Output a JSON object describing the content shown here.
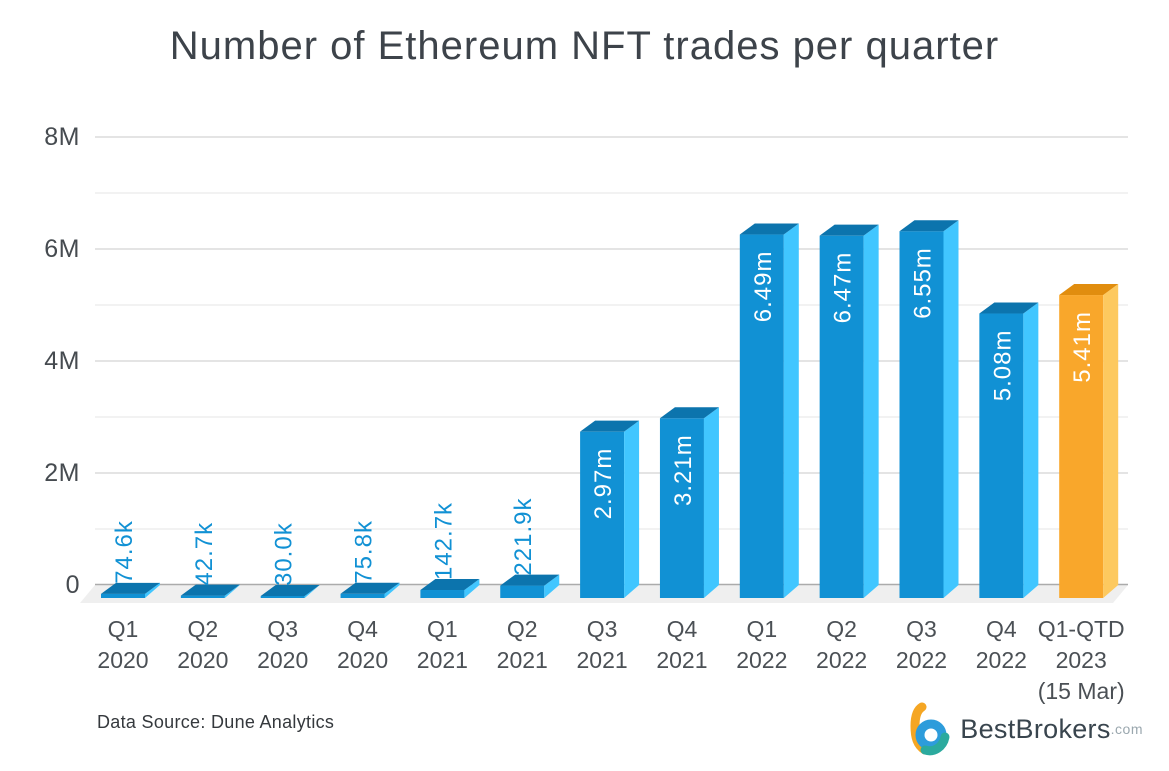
{
  "title": "Number of Ethereum NFT trades per quarter",
  "chart_data": {
    "type": "bar",
    "title": "Number of Ethereum NFT trades per quarter",
    "xlabel": "",
    "ylabel": "",
    "ylim": [
      0,
      8000000
    ],
    "grid": "horizontal, major every 2M (darker) and minor every 1M (lighter)",
    "legend": "none",
    "y_ticks": [
      {
        "label": "8M",
        "value_millions": 8
      },
      {
        "label": "6M",
        "value_millions": 6
      },
      {
        "label": "4M",
        "value_millions": 4
      },
      {
        "label": "2M",
        "value_millions": 2
      },
      {
        "label": "0",
        "value_millions": 0
      }
    ],
    "categories": [
      [
        "Q1",
        "2020"
      ],
      [
        "Q2",
        "2020"
      ],
      [
        "Q3",
        "2020"
      ],
      [
        "Q4",
        "2020"
      ],
      [
        "Q1",
        "2021"
      ],
      [
        "Q2",
        "2021"
      ],
      [
        "Q3",
        "2021"
      ],
      [
        "Q4",
        "2021"
      ],
      [
        "Q1",
        "2022"
      ],
      [
        "Q2",
        "2022"
      ],
      [
        "Q3",
        "2022"
      ],
      [
        "Q4",
        "2022"
      ],
      [
        "Q1-QTD",
        "2023",
        "(15 Mar)"
      ]
    ],
    "bars": [
      {
        "category": "Q1 2020",
        "label": "74.6k",
        "value_millions": 0.0746,
        "color": "blue",
        "label_position": "outside"
      },
      {
        "category": "Q2 2020",
        "label": "42.7k",
        "value_millions": 0.0427,
        "color": "blue",
        "label_position": "outside"
      },
      {
        "category": "Q3 2020",
        "label": "30.0k",
        "value_millions": 0.03,
        "color": "blue",
        "label_position": "outside"
      },
      {
        "category": "Q4 2020",
        "label": "75.8k",
        "value_millions": 0.0758,
        "color": "blue",
        "label_position": "outside"
      },
      {
        "category": "Q1 2021",
        "label": "142.7k",
        "value_millions": 0.1427,
        "color": "blue",
        "label_position": "outside"
      },
      {
        "category": "Q2 2021",
        "label": "221.9k",
        "value_millions": 0.2219,
        "color": "blue",
        "label_position": "outside"
      },
      {
        "category": "Q3 2021",
        "label": "2.97m",
        "value_millions": 2.97,
        "color": "blue",
        "label_position": "inside"
      },
      {
        "category": "Q4 2021",
        "label": "3.21m",
        "value_millions": 3.21,
        "color": "blue",
        "label_position": "inside"
      },
      {
        "category": "Q1 2022",
        "label": "6.49m",
        "value_millions": 6.49,
        "color": "blue",
        "label_position": "inside"
      },
      {
        "category": "Q2 2022",
        "label": "6.47m",
        "value_millions": 6.47,
        "color": "blue",
        "label_position": "inside"
      },
      {
        "category": "Q3 2022",
        "label": "6.55m",
        "value_millions": 6.55,
        "color": "blue",
        "label_position": "inside"
      },
      {
        "category": "Q4 2022",
        "label": "5.08m",
        "value_millions": 5.08,
        "color": "blue",
        "label_position": "inside"
      },
      {
        "category": "Q1-QTD 2023 (15 Mar)",
        "label": "5.41m",
        "value_millions": 5.41,
        "color": "orange",
        "label_position": "inside"
      }
    ],
    "colors": {
      "blue_front": "#1191d4",
      "blue_top": "#0c74ad",
      "blue_side": "#41c6ff",
      "orange_front": "#f9a72b",
      "orange_top": "#e18d0e",
      "orange_side": "#fdc95f",
      "value_label_outside": "#1191d4",
      "value_label_inside": "#ffffff",
      "grid_major": "#c9c9c9",
      "grid_minor": "#e6e6e6",
      "axis_line": "#ababab",
      "floor": "#efefef"
    }
  },
  "footer": {
    "source": "Data Source: Dune Analytics"
  },
  "logo": {
    "brand": "BestBrokers",
    "tld": ".com",
    "mark_colors": {
      "orange": "#f5a623",
      "blue": "#2d9cdb",
      "teal": "#2baa9e"
    }
  }
}
